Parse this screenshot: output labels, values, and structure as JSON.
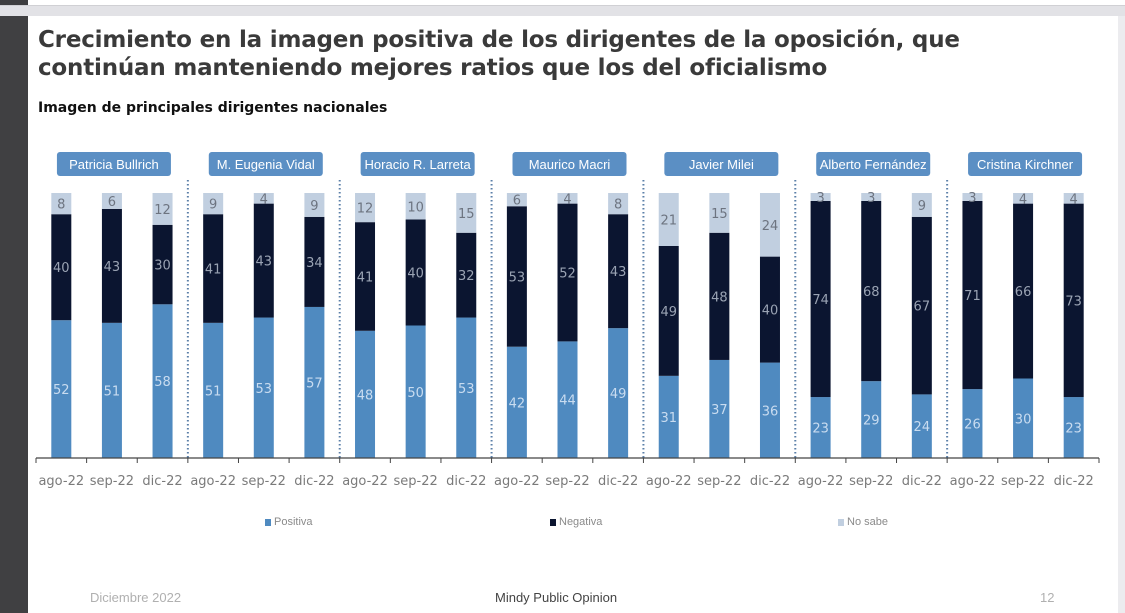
{
  "slide": {
    "title": "Crecimiento en la imagen positiva de los dirigentes de la oposición, que continúan manteniendo mejores ratios que los del oficialismo",
    "subtitle": "Imagen de principales dirigentes nacionales",
    "footer": {
      "date": "Diciembre 2022",
      "source": "Mindy Public Opinion",
      "page": "12"
    }
  },
  "colors": {
    "positiva": "#4f8ac0",
    "negativa": "#0b1530",
    "no_sabe": "#c1cfe0",
    "pill": "#5b8fc4",
    "pill_text": "#ffffff"
  },
  "chart_data": {
    "type": "bar",
    "stacked": true,
    "title": "Imagen de principales dirigentes nacionales",
    "xlabel": "",
    "ylabel": "",
    "ylim": [
      0,
      100
    ],
    "grid": false,
    "legend_position": "bottom",
    "legend": [
      "Positiva",
      "Negativa",
      "No sabe"
    ],
    "groups": [
      {
        "name": "Patricia Bullrich",
        "periods": [
          "ago-22",
          "sep-22",
          "dic-22"
        ],
        "positiva": [
          52,
          51,
          58
        ],
        "negativa": [
          40,
          43,
          30
        ],
        "no_sabe": [
          8,
          6,
          12
        ]
      },
      {
        "name": "M. Eugenia Vidal",
        "periods": [
          "ago-22",
          "sep-22",
          "dic-22"
        ],
        "positiva": [
          51,
          53,
          57
        ],
        "negativa": [
          41,
          43,
          34
        ],
        "no_sabe": [
          9,
          4,
          9
        ]
      },
      {
        "name": "Horacio R. Larreta",
        "periods": [
          "ago-22",
          "sep-22",
          "dic-22"
        ],
        "positiva": [
          48,
          50,
          53
        ],
        "negativa": [
          41,
          40,
          32
        ],
        "no_sabe": [
          12,
          10,
          15
        ]
      },
      {
        "name": "Maurico Macri",
        "periods": [
          "ago-22",
          "sep-22",
          "dic-22"
        ],
        "positiva": [
          42,
          44,
          49
        ],
        "negativa": [
          53,
          52,
          43
        ],
        "no_sabe": [
          6,
          4,
          8
        ]
      },
      {
        "name": "Javier Milei",
        "periods": [
          "ago-22",
          "sep-22",
          "dic-22"
        ],
        "positiva": [
          31,
          37,
          36
        ],
        "negativa": [
          49,
          48,
          40
        ],
        "no_sabe": [
          21,
          15,
          24
        ]
      },
      {
        "name": "Alberto Fernández",
        "periods": [
          "ago-22",
          "sep-22",
          "dic-22"
        ],
        "positiva": [
          23,
          29,
          24
        ],
        "negativa": [
          74,
          68,
          67
        ],
        "no_sabe": [
          3,
          3,
          9
        ]
      },
      {
        "name": "Cristina Kirchner",
        "periods": [
          "ago-22",
          "sep-22",
          "dic-22"
        ],
        "positiva": [
          26,
          30,
          23
        ],
        "negativa": [
          71,
          66,
          73
        ],
        "no_sabe": [
          3,
          4,
          4
        ]
      }
    ]
  }
}
